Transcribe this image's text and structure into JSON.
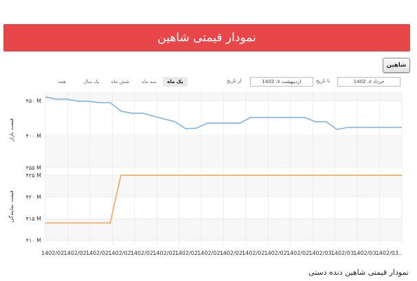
{
  "page": {
    "top_fragment": "",
    "banner_title": "نمودار قیمتی شاهین",
    "filter_button": "شاهین",
    "caption": "نمودار قیمتی شاهین دنده دستی"
  },
  "controls": {
    "ranges": [
      {
        "label": "یک ماه",
        "active": true
      },
      {
        "label": "سه ماه",
        "active": false
      },
      {
        "label": "شش ماه",
        "active": false
      },
      {
        "label": "یک سال",
        "active": false
      },
      {
        "label": "همه",
        "active": false
      }
    ],
    "from_label": "از تاریخ",
    "from_value": "اردیبهشت ۷، 1402",
    "to_label": "تا تاریخ",
    "to_value": "خرداد ۷، 1402"
  },
  "colors": {
    "market_line": "#7fb3dc",
    "factory_line": "#f5a55a",
    "plot_band_light": "#f7f7f7",
    "grid": "#e3e3e3"
  },
  "chart_data": [
    {
      "type": "line",
      "ylabel": "قیمت بازار",
      "y_ticks": [
        355,
        400,
        450
      ],
      "y_tick_labels": [
        "۳۵۵ M",
        "۴۰۰ M",
        "۴۵۰ M"
      ],
      "ylim": [
        355,
        462
      ],
      "series": [
        {
          "values": [
            455,
            452,
            452,
            449,
            449,
            447,
            447,
            435,
            432,
            432,
            428,
            424,
            420,
            410,
            411,
            418,
            418,
            418,
            418,
            426,
            426,
            426,
            426,
            426,
            426,
            420,
            420,
            409,
            412,
            412,
            412,
            412,
            412,
            412
          ]
        }
      ]
    },
    {
      "type": "line",
      "ylabel": "قیمت نمایندگی",
      "y_ticks": [
        410,
        415,
        420,
        425
      ],
      "y_tick_labels": [
        "۴۱۰ M",
        "۴۱۵ M",
        "۴۲۰ M",
        "۴۲۵ M"
      ],
      "ylim": [
        409,
        426.6
      ],
      "series": [
        {
          "values": [
            414,
            414,
            414,
            414,
            414,
            414,
            414,
            425,
            425,
            425,
            425,
            425,
            425,
            425,
            425,
            425,
            425,
            425,
            425,
            425,
            425,
            425,
            425,
            425,
            425,
            425,
            425,
            425,
            425,
            425,
            425,
            425,
            425,
            425
          ]
        }
      ],
      "x_tick_labels": [
        "1402/02..",
        "1402/02..",
        "1402/02..",
        "1402/02..",
        "1402/02..",
        "1402/02..",
        "1402/02..",
        "1402/02..",
        "1402/02..",
        "1402/02..",
        "1402/02..",
        "1402/02..",
        "1402/03..",
        "1402/03..",
        "1402/03..",
        "1402/03.."
      ]
    }
  ]
}
